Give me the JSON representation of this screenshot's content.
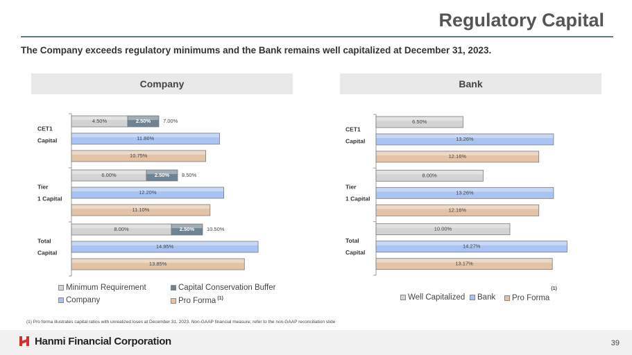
{
  "header": {
    "title": "Regulatory Capital",
    "subtitle": "The Company exceeds regulatory minimums and the Bank remains well capitalized at December 31, 2023."
  },
  "footnote": "(1)    Pro forma illustrates capital ratios with unrealized loses at December 31, 2023. Non-GAAP financial measure; refer to the non-GAAP reconciliation slide",
  "footer": {
    "company": "Hanmi Financial Corporation",
    "page": "39"
  },
  "colors": {
    "minimum": "#d3d3d3",
    "buffer": "#6e8393",
    "company": "#a9c4f2",
    "proforma": "#e3c3a8",
    "logo_red": "#d42e2e"
  },
  "chart_data": [
    {
      "type": "bar",
      "orientation": "horizontal",
      "title": "Company",
      "categories": [
        "CET1 Capital",
        "Tier 1 Capital",
        "Total Capital"
      ],
      "series": [
        {
          "name": "Minimum Requirement",
          "values": [
            4.5,
            6.0,
            8.0
          ],
          "labels": [
            "4.50%",
            "6.00%",
            "8.00%"
          ],
          "stack": "req"
        },
        {
          "name": "Capital Conservation Buffer",
          "values": [
            2.5,
            2.5,
            2.5
          ],
          "labels": [
            "2.50%",
            "2.50%",
            "2.50%"
          ],
          "stack": "req"
        },
        {
          "name": "Company",
          "values": [
            11.86,
            12.2,
            14.95
          ],
          "labels": [
            "11.86%",
            "12.20%",
            "14.95%"
          ]
        },
        {
          "name": "Pro Forma",
          "values": [
            10.75,
            11.1,
            13.85
          ],
          "labels": [
            "10.75%",
            "11.10%",
            "13.85%"
          ]
        }
      ],
      "totals": [
        "7.00%",
        "8.50%",
        "10.50%"
      ],
      "legend_sup": "(1)",
      "legend": "bottom"
    },
    {
      "type": "bar",
      "orientation": "horizontal",
      "title": "Bank",
      "categories": [
        "CET1 Capital",
        "Tier 1 Capital",
        "Total Capital"
      ],
      "series": [
        {
          "name": "Well Capitalized",
          "values": [
            6.5,
            8.0,
            10.0
          ],
          "labels": [
            "6.50%",
            "8.00%",
            "10.00%"
          ]
        },
        {
          "name": "Bank",
          "values": [
            13.26,
            13.26,
            14.27
          ],
          "labels": [
            "13.26%",
            "13.26%",
            "14.27%"
          ]
        },
        {
          "name": "Pro Forma",
          "values": [
            12.16,
            12.16,
            13.17
          ],
          "labels": [
            "12.16%",
            "12.16%",
            "13.17%"
          ]
        }
      ],
      "legend_sup": "(1)",
      "legend": "bottom"
    }
  ]
}
